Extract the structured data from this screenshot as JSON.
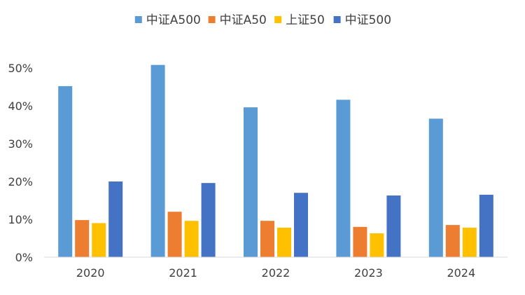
{
  "chart_data": {
    "type": "bar",
    "title": "",
    "xlabel": "",
    "ylabel": "",
    "categories": [
      "2020",
      "2021",
      "2022",
      "2023",
      "2024"
    ],
    "series": [
      {
        "name": "中证A500",
        "color": "#5B9BD5",
        "values": [
          45.2,
          50.8,
          39.6,
          41.6,
          36.6
        ]
      },
      {
        "name": "中证A50",
        "color": "#ED7D31",
        "values": [
          9.8,
          12.0,
          9.6,
          8.0,
          8.5
        ]
      },
      {
        "name": "上证50",
        "color": "#FFC000",
        "values": [
          9.0,
          9.6,
          7.8,
          6.3,
          7.8
        ]
      },
      {
        "name": "中证500",
        "color": "#4472C4",
        "values": [
          20.0,
          19.6,
          17.0,
          16.3,
          16.5
        ]
      }
    ],
    "ylim": [
      0,
      50
    ],
    "yticks": [
      0,
      10,
      20,
      30,
      40,
      50
    ],
    "ytick_labels": [
      "0%",
      "10%",
      "20%",
      "30%",
      "40%",
      "50%"
    ],
    "grid": false,
    "legend_position": "top-center",
    "axis_color": "#D9D9D9"
  }
}
